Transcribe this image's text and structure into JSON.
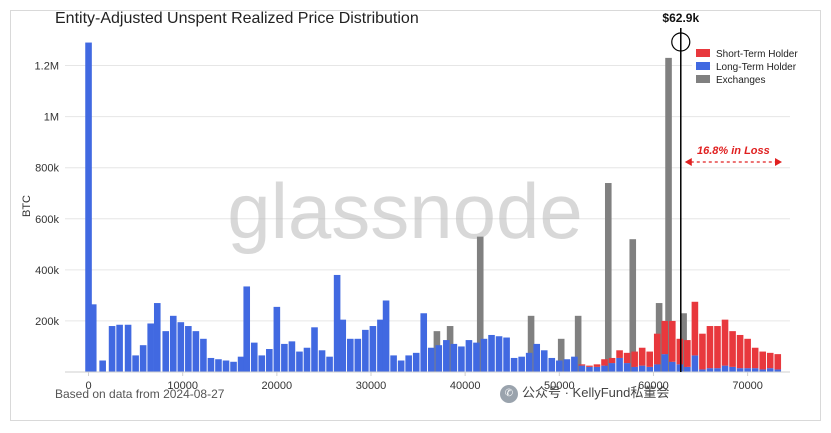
{
  "chart_data": {
    "type": "bar",
    "title": "Entity-Adjusted Unspent Realized Price Distribution",
    "ylabel": "BTC",
    "xlabel": "",
    "xlim": [
      -2500,
      74500
    ],
    "ylim": [
      0,
      1300000
    ],
    "yticks": [
      200000,
      400000,
      600000,
      800000,
      1000000,
      1200000
    ],
    "ytick_labels": [
      "200k",
      "400k",
      "600k",
      "800k",
      "1M",
      "1.2M"
    ],
    "xticks": [
      0,
      10000,
      20000,
      30000,
      40000,
      50000,
      60000,
      70000
    ],
    "xtick_labels": [
      "0",
      "10000",
      "20000",
      "30000",
      "40000",
      "50000",
      "60000",
      "70000"
    ],
    "grid": true,
    "legend_position": "top-right",
    "bin_width": 700,
    "series": [
      {
        "name": "Long-Term Holder",
        "color": "#4169e1",
        "points": [
          {
            "x": 0,
            "y": 1290000
          },
          {
            "x": 500,
            "y": 265000
          },
          {
            "x": 1500,
            "y": 45000
          },
          {
            "x": 2500,
            "y": 180000
          },
          {
            "x": 3300,
            "y": 185000
          },
          {
            "x": 4200,
            "y": 185000
          },
          {
            "x": 5000,
            "y": 65000
          },
          {
            "x": 5800,
            "y": 105000
          },
          {
            "x": 6600,
            "y": 190000
          },
          {
            "x": 7300,
            "y": 270000
          },
          {
            "x": 8200,
            "y": 160000
          },
          {
            "x": 9000,
            "y": 220000
          },
          {
            "x": 9800,
            "y": 195000
          },
          {
            "x": 10600,
            "y": 180000
          },
          {
            "x": 11400,
            "y": 160000
          },
          {
            "x": 12200,
            "y": 130000
          },
          {
            "x": 13000,
            "y": 55000
          },
          {
            "x": 13800,
            "y": 50000
          },
          {
            "x": 14600,
            "y": 45000
          },
          {
            "x": 15400,
            "y": 40000
          },
          {
            "x": 16200,
            "y": 60000
          },
          {
            "x": 16800,
            "y": 335000
          },
          {
            "x": 17600,
            "y": 115000
          },
          {
            "x": 18400,
            "y": 65000
          },
          {
            "x": 19200,
            "y": 90000
          },
          {
            "x": 20000,
            "y": 255000
          },
          {
            "x": 20800,
            "y": 110000
          },
          {
            "x": 21600,
            "y": 120000
          },
          {
            "x": 22400,
            "y": 80000
          },
          {
            "x": 23200,
            "y": 95000
          },
          {
            "x": 24000,
            "y": 175000
          },
          {
            "x": 24800,
            "y": 85000
          },
          {
            "x": 25600,
            "y": 60000
          },
          {
            "x": 26400,
            "y": 380000
          },
          {
            "x": 27000,
            "y": 205000
          },
          {
            "x": 27800,
            "y": 130000
          },
          {
            "x": 28600,
            "y": 130000
          },
          {
            "x": 29400,
            "y": 165000
          },
          {
            "x": 30200,
            "y": 180000
          },
          {
            "x": 31000,
            "y": 205000
          },
          {
            "x": 31600,
            "y": 280000
          },
          {
            "x": 32400,
            "y": 65000
          },
          {
            "x": 33200,
            "y": 45000
          },
          {
            "x": 34000,
            "y": 65000
          },
          {
            "x": 34800,
            "y": 75000
          },
          {
            "x": 35600,
            "y": 230000
          },
          {
            "x": 36400,
            "y": 95000
          },
          {
            "x": 37200,
            "y": 105000
          },
          {
            "x": 38000,
            "y": 125000
          },
          {
            "x": 38800,
            "y": 110000
          },
          {
            "x": 39600,
            "y": 100000
          },
          {
            "x": 40400,
            "y": 125000
          },
          {
            "x": 41200,
            "y": 115000
          },
          {
            "x": 42000,
            "y": 130000
          },
          {
            "x": 42800,
            "y": 145000
          },
          {
            "x": 43600,
            "y": 140000
          },
          {
            "x": 44400,
            "y": 135000
          },
          {
            "x": 45200,
            "y": 55000
          },
          {
            "x": 46000,
            "y": 60000
          },
          {
            "x": 46800,
            "y": 75000
          },
          {
            "x": 47600,
            "y": 110000
          },
          {
            "x": 48400,
            "y": 85000
          },
          {
            "x": 49200,
            "y": 55000
          },
          {
            "x": 50000,
            "y": 45000
          },
          {
            "x": 50800,
            "y": 50000
          },
          {
            "x": 51600,
            "y": 60000
          },
          {
            "x": 52400,
            "y": 25000
          },
          {
            "x": 53200,
            "y": 20000
          },
          {
            "x": 54000,
            "y": 20000
          },
          {
            "x": 54800,
            "y": 25000
          },
          {
            "x": 55600,
            "y": 35000
          },
          {
            "x": 56400,
            "y": 55000
          },
          {
            "x": 57200,
            "y": 35000
          },
          {
            "x": 58000,
            "y": 20000
          },
          {
            "x": 58800,
            "y": 25000
          },
          {
            "x": 59600,
            "y": 20000
          },
          {
            "x": 60400,
            "y": 30000
          },
          {
            "x": 61200,
            "y": 70000
          },
          {
            "x": 62000,
            "y": 40000
          },
          {
            "x": 62800,
            "y": 30000
          },
          {
            "x": 63600,
            "y": 20000
          },
          {
            "x": 64400,
            "y": 65000
          },
          {
            "x": 65200,
            "y": 10000
          },
          {
            "x": 66000,
            "y": 15000
          },
          {
            "x": 66800,
            "y": 15000
          },
          {
            "x": 67600,
            "y": 25000
          },
          {
            "x": 68400,
            "y": 20000
          },
          {
            "x": 69200,
            "y": 15000
          },
          {
            "x": 70000,
            "y": 15000
          },
          {
            "x": 70800,
            "y": 15000
          },
          {
            "x": 71600,
            "y": 10000
          },
          {
            "x": 72400,
            "y": 15000
          },
          {
            "x": 73200,
            "y": 10000
          }
        ]
      },
      {
        "name": "Short-Term Holder",
        "color": "#e8383d",
        "points": [
          {
            "x": 52400,
            "y": 5000
          },
          {
            "x": 53200,
            "y": 5000
          },
          {
            "x": 54000,
            "y": 10000
          },
          {
            "x": 54800,
            "y": 25000
          },
          {
            "x": 55600,
            "y": 20000
          },
          {
            "x": 56400,
            "y": 30000
          },
          {
            "x": 57200,
            "y": 40000
          },
          {
            "x": 58000,
            "y": 60000
          },
          {
            "x": 58800,
            "y": 70000
          },
          {
            "x": 59600,
            "y": 60000
          },
          {
            "x": 60400,
            "y": 120000
          },
          {
            "x": 61200,
            "y": 130000
          },
          {
            "x": 62000,
            "y": 160000
          },
          {
            "x": 62800,
            "y": 100000
          },
          {
            "x": 63600,
            "y": 105000
          },
          {
            "x": 64400,
            "y": 210000
          },
          {
            "x": 65200,
            "y": 140000
          },
          {
            "x": 66000,
            "y": 165000
          },
          {
            "x": 66800,
            "y": 165000
          },
          {
            "x": 67600,
            "y": 180000
          },
          {
            "x": 68400,
            "y": 140000
          },
          {
            "x": 69200,
            "y": 130000
          },
          {
            "x": 70000,
            "y": 115000
          },
          {
            "x": 70800,
            "y": 80000
          },
          {
            "x": 71600,
            "y": 70000
          },
          {
            "x": 72400,
            "y": 60000
          },
          {
            "x": 73200,
            "y": 60000
          }
        ]
      },
      {
        "name": "Exchanges",
        "color": "#808080",
        "points": [
          {
            "x": 41600,
            "y": 530000
          },
          {
            "x": 38400,
            "y": 180000
          },
          {
            "x": 37000,
            "y": 160000
          },
          {
            "x": 47000,
            "y": 220000
          },
          {
            "x": 52000,
            "y": 220000
          },
          {
            "x": 55200,
            "y": 740000
          },
          {
            "x": 57800,
            "y": 520000
          },
          {
            "x": 61600,
            "y": 1230000
          },
          {
            "x": 60600,
            "y": 270000
          },
          {
            "x": 63200,
            "y": 230000
          },
          {
            "x": 50200,
            "y": 130000
          }
        ]
      }
    ],
    "annotations": {
      "price_line_x": 62900,
      "price_label": "$62.9k",
      "loss_label": "16.8% in Loss"
    }
  },
  "footer": {
    "source_text": "Based on data from 2024-08-27",
    "watermark_text": "glassnode",
    "credit_text": "公众号 · KellyFund私董会"
  }
}
